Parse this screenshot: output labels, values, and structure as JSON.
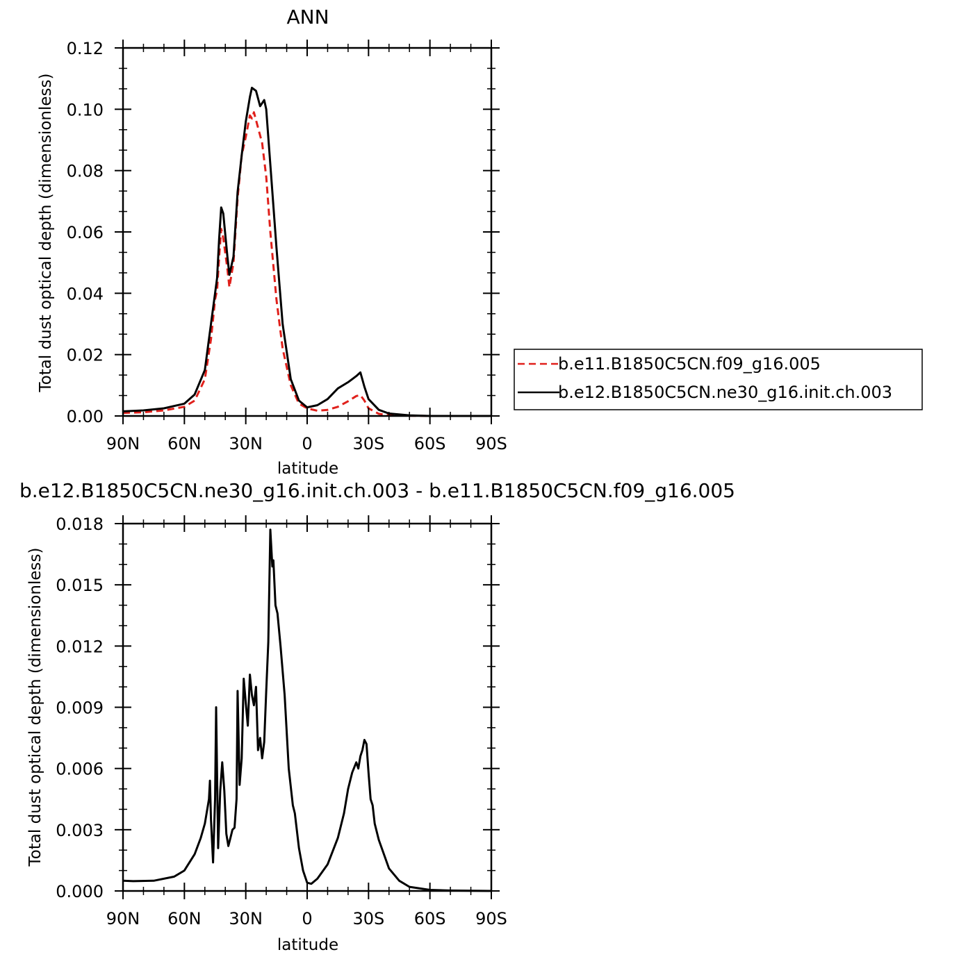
{
  "chart_data": [
    {
      "type": "line",
      "title": "ANN",
      "xlabel": "latitude",
      "ylabel": "Total dust optical depth (dimensionless)",
      "xlim": [
        90,
        -90
      ],
      "ylim": [
        0,
        0.12
      ],
      "x_ticks": [
        90,
        60,
        30,
        0,
        -30,
        -60,
        -90
      ],
      "x_tick_labels": [
        "90N",
        "60N",
        "30N",
        "0",
        "30S",
        "60S",
        "90S"
      ],
      "y_ticks": [
        0,
        0.02,
        0.04,
        0.06,
        0.08,
        0.1,
        0.12
      ],
      "y_tick_labels": [
        "0.00",
        "0.02",
        "0.04",
        "0.06",
        "0.08",
        "0.10",
        "0.12"
      ],
      "grid": false,
      "legend_position": "right",
      "series": [
        {
          "name": "b.e11.B1850C5CN.f09_g16.005",
          "color": "#e0201b",
          "dash": "dashed",
          "points": [
            [
              90,
              0.001
            ],
            [
              80,
              0.0012
            ],
            [
              70,
              0.0018
            ],
            [
              60,
              0.003
            ],
            [
              55,
              0.005
            ],
            [
              50,
              0.012
            ],
            [
              47,
              0.025
            ],
            [
              45,
              0.038
            ],
            [
              44,
              0.041
            ],
            [
              43,
              0.052
            ],
            [
              42,
              0.061
            ],
            [
              41,
              0.058
            ],
            [
              39,
              0.048
            ],
            [
              38,
              0.042
            ],
            [
              36,
              0.05
            ],
            [
              34,
              0.071
            ],
            [
              32,
              0.085
            ],
            [
              30,
              0.091
            ],
            [
              28,
              0.098
            ],
            [
              27,
              0.097
            ],
            [
              26,
              0.099
            ],
            [
              24,
              0.094
            ],
            [
              22,
              0.089
            ],
            [
              20,
              0.078
            ],
            [
              18,
              0.06
            ],
            [
              15,
              0.038
            ],
            [
              12,
              0.022
            ],
            [
              8,
              0.01
            ],
            [
              4,
              0.004
            ],
            [
              0,
              0.0025
            ],
            [
              -5,
              0.0017
            ],
            [
              -10,
              0.002
            ],
            [
              -15,
              0.003
            ],
            [
              -20,
              0.0048
            ],
            [
              -24,
              0.0065
            ],
            [
              -26,
              0.0068
            ],
            [
              -28,
              0.005
            ],
            [
              -30,
              0.0025
            ],
            [
              -35,
              0.0007
            ],
            [
              -40,
              0.0002
            ],
            [
              -50,
              0.0001
            ],
            [
              -60,
              0
            ],
            [
              -70,
              0
            ],
            [
              -90,
              0
            ]
          ]
        },
        {
          "name": "b.e12.B1850C5CN.ne30_g16.init.ch.003",
          "color": "#000000",
          "dash": "solid",
          "points": [
            [
              90,
              0.0015
            ],
            [
              80,
              0.0018
            ],
            [
              70,
              0.0025
            ],
            [
              60,
              0.004
            ],
            [
              55,
              0.007
            ],
            [
              50,
              0.015
            ],
            [
              47,
              0.03
            ],
            [
              45,
              0.04
            ],
            [
              44,
              0.045
            ],
            [
              43,
              0.058
            ],
            [
              42,
              0.068
            ],
            [
              41,
              0.066
            ],
            [
              39,
              0.052
            ],
            [
              38,
              0.046
            ],
            [
              36,
              0.052
            ],
            [
              34,
              0.073
            ],
            [
              32,
              0.085
            ],
            [
              30,
              0.096
            ],
            [
              28,
              0.104
            ],
            [
              27,
              0.107
            ],
            [
              25,
              0.106
            ],
            [
              23,
              0.101
            ],
            [
              21,
              0.103
            ],
            [
              20,
              0.1
            ],
            [
              18,
              0.082
            ],
            [
              15,
              0.055
            ],
            [
              12,
              0.03
            ],
            [
              8,
              0.012
            ],
            [
              4,
              0.005
            ],
            [
              0,
              0.0028
            ],
            [
              -5,
              0.0035
            ],
            [
              -10,
              0.0055
            ],
            [
              -15,
              0.009
            ],
            [
              -20,
              0.011
            ],
            [
              -24,
              0.013
            ],
            [
              -26,
              0.0142
            ],
            [
              -28,
              0.0095
            ],
            [
              -30,
              0.0055
            ],
            [
              -35,
              0.002
            ],
            [
              -40,
              0.0008
            ],
            [
              -50,
              0.0002
            ],
            [
              -60,
              0
            ],
            [
              -70,
              0
            ],
            [
              -90,
              0
            ]
          ]
        }
      ]
    },
    {
      "type": "line",
      "title": "b.e12.B1850C5CN.ne30_g16.init.ch.003 - b.e11.B1850C5CN.f09_g16.005",
      "xlabel": "latitude",
      "ylabel": "Total dust optical depth (dimensionless)",
      "xlim": [
        90,
        -90
      ],
      "ylim": [
        0,
        0.018
      ],
      "x_ticks": [
        90,
        60,
        30,
        0,
        -30,
        -60,
        -90
      ],
      "x_tick_labels": [
        "90N",
        "60N",
        "30N",
        "0",
        "30S",
        "60S",
        "90S"
      ],
      "y_ticks": [
        0,
        0.003,
        0.006,
        0.009,
        0.012,
        0.015,
        0.018
      ],
      "y_tick_labels": [
        "0.000",
        "0.003",
        "0.006",
        "0.009",
        "0.012",
        "0.015",
        "0.018"
      ],
      "grid": false,
      "series": [
        {
          "color": "#000000",
          "dash": "solid",
          "points": [
            [
              90,
              0.0005
            ],
            [
              85,
              0.00048
            ],
            [
              75,
              0.0005
            ],
            [
              65,
              0.0007
            ],
            [
              60,
              0.001
            ],
            [
              55,
              0.0018
            ],
            [
              52,
              0.0026
            ],
            [
              50,
              0.0033
            ],
            [
              48,
              0.0045
            ],
            [
              47.5,
              0.0054
            ],
            [
              47,
              0.0035
            ],
            [
              46,
              0.0014
            ],
            [
              45,
              0.0045
            ],
            [
              44.5,
              0.009
            ],
            [
              43.5,
              0.0021
            ],
            [
              42.5,
              0.0049
            ],
            [
              41.5,
              0.0063
            ],
            [
              40.5,
              0.0049
            ],
            [
              39.5,
              0.0028
            ],
            [
              38.5,
              0.0022
            ],
            [
              37.5,
              0.0026
            ],
            [
              36.5,
              0.003
            ],
            [
              35.5,
              0.0031
            ],
            [
              34.5,
              0.0045
            ],
            [
              34,
              0.0098
            ],
            [
              33,
              0.0052
            ],
            [
              32,
              0.0065
            ],
            [
              31,
              0.0104
            ],
            [
              30,
              0.0092
            ],
            [
              29,
              0.0081
            ],
            [
              28,
              0.0106
            ],
            [
              27,
              0.0096
            ],
            [
              26,
              0.0091
            ],
            [
              25,
              0.01
            ],
            [
              24,
              0.0069
            ],
            [
              23,
              0.0075
            ],
            [
              22,
              0.0065
            ],
            [
              21,
              0.0073
            ],
            [
              20,
              0.0098
            ],
            [
              19,
              0.0122
            ],
            [
              18,
              0.0177
            ],
            [
              17,
              0.0159
            ],
            [
              16.5,
              0.0162
            ],
            [
              15.5,
              0.014
            ],
            [
              14.5,
              0.0136
            ],
            [
              13,
              0.012
            ],
            [
              11,
              0.0096
            ],
            [
              9,
              0.006
            ],
            [
              7,
              0.0042
            ],
            [
              6,
              0.0038
            ],
            [
              4,
              0.0021
            ],
            [
              2,
              0.001
            ],
            [
              0,
              0.0004
            ],
            [
              -2,
              0.00035
            ],
            [
              -5,
              0.0006
            ],
            [
              -10,
              0.0013
            ],
            [
              -15,
              0.0026
            ],
            [
              -18,
              0.0038
            ],
            [
              -20,
              0.005
            ],
            [
              -22,
              0.0058
            ],
            [
              -24,
              0.0063
            ],
            [
              -25,
              0.006
            ],
            [
              -26,
              0.0066
            ],
            [
              -27,
              0.0069
            ],
            [
              -28,
              0.0074
            ],
            [
              -29,
              0.0072
            ],
            [
              -30,
              0.0058
            ],
            [
              -31,
              0.0045
            ],
            [
              -32,
              0.0042
            ],
            [
              -33,
              0.0033
            ],
            [
              -35,
              0.0025
            ],
            [
              -40,
              0.0011
            ],
            [
              -45,
              0.0005
            ],
            [
              -50,
              0.0002
            ],
            [
              -60,
              5e-05
            ],
            [
              -70,
              2e-05
            ],
            [
              -90,
              0
            ]
          ]
        }
      ]
    }
  ]
}
